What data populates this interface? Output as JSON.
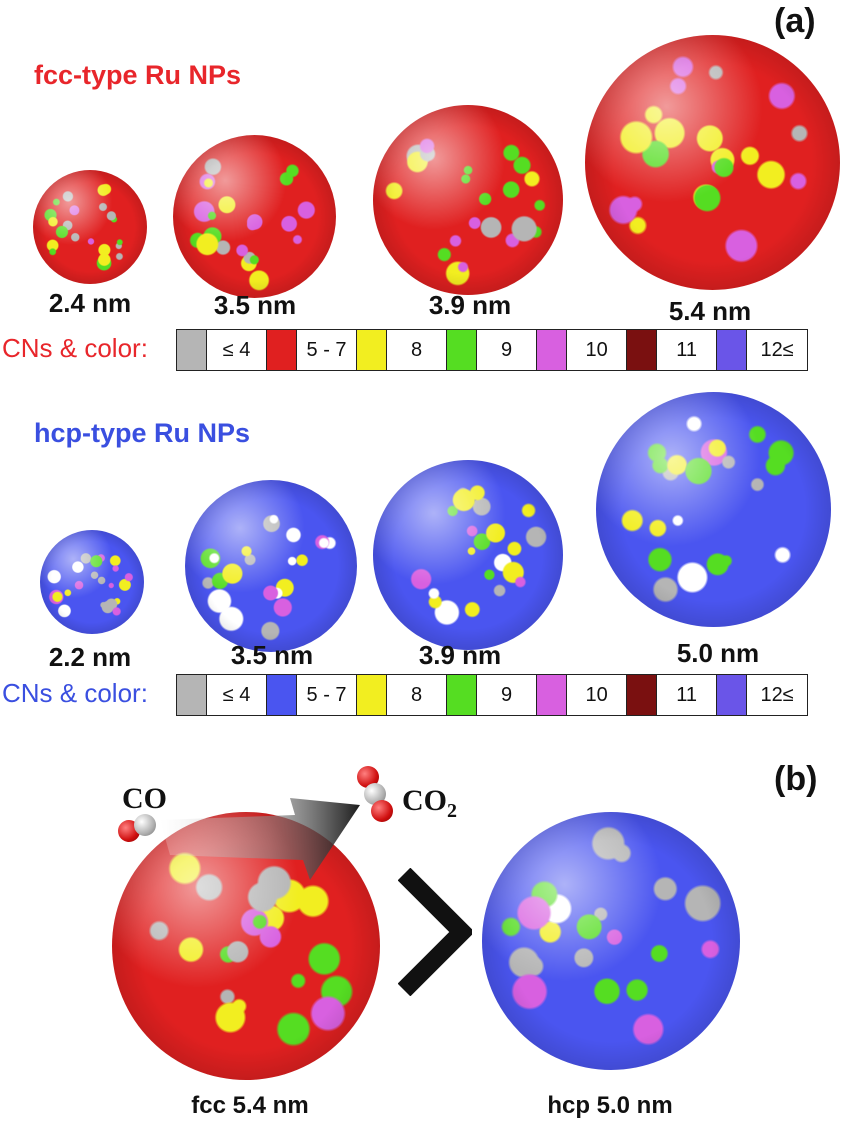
{
  "panel_a": {
    "label": "(a)",
    "fcc": {
      "title": "fcc-type Ru NPs",
      "sizes": [
        "2.4 nm",
        "3.5 nm",
        "3.9 nm",
        "5.4 nm"
      ],
      "legend_title": "CNs & color:",
      "legend_colors": [
        "#b5b5b5",
        "#e02020",
        "#f2ee20",
        "#55dd22",
        "#d860e0",
        "#7a1010",
        "#6a55e8"
      ]
    },
    "hcp": {
      "title": "hcp-type Ru NPs",
      "sizes": [
        "2.2 nm",
        "3.5 nm",
        "3.9 nm",
        "5.0 nm"
      ],
      "legend_title": "CNs & color:",
      "legend_colors": [
        "#b5b5b5",
        "#4a55f0",
        "#f2ee20",
        "#55dd22",
        "#d860e0",
        "#7a1010",
        "#6a55e8"
      ]
    },
    "legend_labels": [
      "≤ 4",
      "5 - 7",
      "8",
      "9",
      "10",
      "11",
      "12≤"
    ]
  },
  "panel_b": {
    "label": "(b)",
    "reactant": "CO",
    "product": "CO",
    "product_subscript": "2",
    "comparison_symbol": ">",
    "left_caption": "fcc 5.4 nm",
    "right_caption": "hcp 5.0 nm"
  },
  "colors": {
    "fcc_title": "#e8262b",
    "hcp_title": "#3a4fe0",
    "fcc_base": "#e02020",
    "hcp_base": "#4a55f0"
  }
}
